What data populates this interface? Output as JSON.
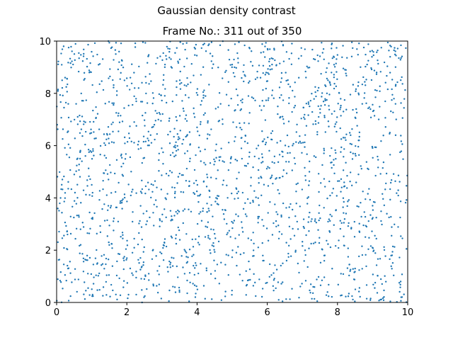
{
  "figure": {
    "suptitle": "Gaussian density contrast"
  },
  "chart_data": {
    "type": "scatter",
    "title": "Frame No.: 311 out of 350",
    "xlabel": "",
    "ylabel": "",
    "xlim": [
      0,
      10
    ],
    "ylim": [
      0,
      10
    ],
    "x_ticks": [
      "0",
      "2",
      "4",
      "6",
      "8",
      "10"
    ],
    "y_ticks": [
      "0",
      "2",
      "4",
      "6",
      "8",
      "10"
    ],
    "grid": false,
    "point_color": "#1f77b4",
    "n_points": 2000,
    "distribution": "approximately uniform random points over [0,10]x[0,10]",
    "points_sample": [
      [
        0.2,
        9.8
      ],
      [
        0.6,
        7.1
      ],
      [
        1.0,
        4.5
      ],
      [
        1.5,
        2.2
      ],
      [
        2.1,
        8.6
      ],
      [
        2.4,
        5.9
      ],
      [
        3.0,
        3.1
      ],
      [
        3.5,
        0.4
      ],
      [
        4.0,
        6.7
      ],
      [
        4.4,
        2.8
      ],
      [
        5.0,
        9.1
      ],
      [
        5.3,
        4.2
      ],
      [
        5.9,
        1.6
      ],
      [
        6.3,
        7.5
      ],
      [
        6.8,
        3.3
      ],
      [
        7.2,
        5.0
      ],
      [
        7.7,
        8.0
      ],
      [
        8.1,
        1.1
      ],
      [
        8.6,
        6.2
      ],
      [
        9.0,
        3.7
      ],
      [
        9.5,
        9.4
      ],
      [
        9.8,
        0.8
      ]
    ]
  }
}
